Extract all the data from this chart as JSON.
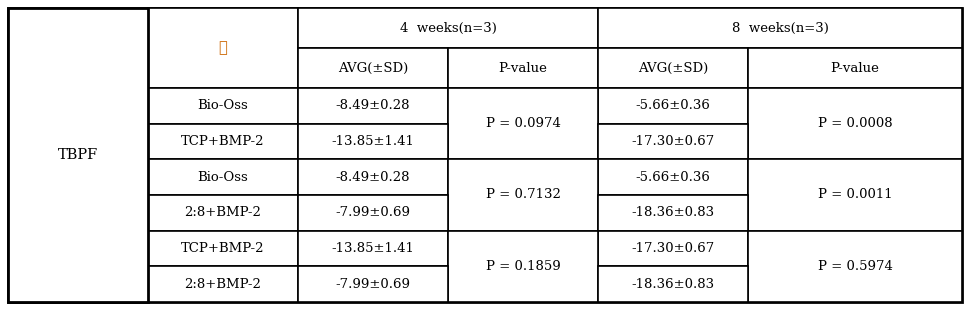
{
  "title_left": "TBPF",
  "col_group_1": "4  weeks(n=3)",
  "col_group_2": "8  weeks(n=3)",
  "gun_label": "군",
  "gun_color": "#cc6600",
  "subheaders": [
    "AVG(±SD)",
    "P-value",
    "AVG(±SD)",
    "P-value"
  ],
  "rows": [
    [
      "Bio-Oss",
      "-8.49±0.28",
      "P = 0.0974",
      "-5.66±0.36",
      "P = 0.0008"
    ],
    [
      "TCP+BMP-2",
      "-13.85±1.41",
      "",
      "-17.30±0.67",
      ""
    ],
    [
      "Bio-Oss",
      "-8.49±0.28",
      "P = 0.7132",
      "-5.66±0.36",
      "P = 0.0011"
    ],
    [
      "2:8+BMP-2",
      "-7.99±0.69",
      "",
      "-18.36±0.83",
      ""
    ],
    [
      "TCP+BMP-2",
      "-13.85±1.41",
      "P = 0.1859",
      "-17.30±0.67",
      "P = 0.5974"
    ],
    [
      "2:8+BMP-2",
      "-7.99±0.69",
      "",
      "-18.36±0.83",
      ""
    ]
  ],
  "font_size": 9.5,
  "background_color": "#ffffff",
  "border_color": "#000000",
  "lw": 1.2
}
